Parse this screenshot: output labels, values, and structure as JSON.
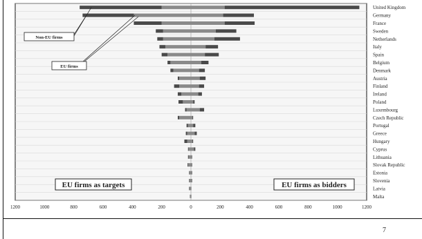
{
  "page": {
    "number": "7"
  },
  "chart_data": {
    "type": "bar",
    "orientation": "horizontal-diverging",
    "categories": [
      "United Kingdom",
      "Germany",
      "France",
      "Sweden",
      "Netherlands",
      "Italy",
      "Spain",
      "Belgium",
      "Denmark",
      "Austria",
      "Finland",
      "Ireland",
      "Poland",
      "Luxembourg",
      "Czech Republic",
      "Portugal",
      "Greece",
      "Hungary",
      "Cyprus",
      "Lithuania",
      "Slovak Republic",
      "Estonia",
      "Slovenia",
      "Latvia",
      "Malta"
    ],
    "targets": {
      "label": "EU firms as targets",
      "series": [
        {
          "name": "EU firms",
          "values": [
            200,
            390,
            200,
            190,
            190,
            175,
            160,
            140,
            120,
            80,
            80,
            65,
            55,
            30,
            80,
            20,
            25,
            25,
            15,
            15,
            18,
            10,
            10,
            10,
            5
          ]
        },
        {
          "name": "Non-EU firms",
          "values": [
            560,
            350,
            190,
            50,
            40,
            40,
            40,
            20,
            20,
            10,
            35,
            25,
            30,
            10,
            10,
            10,
            10,
            20,
            5,
            5,
            5,
            3,
            3,
            3,
            2
          ]
        }
      ]
    },
    "bidders": {
      "label": "EU firms as bidders",
      "series": [
        {
          "name": "EU firms",
          "values": [
            230,
            220,
            230,
            170,
            160,
            100,
            95,
            70,
            55,
            60,
            55,
            50,
            15,
            60,
            10,
            15,
            25,
            10,
            20,
            5,
            5,
            5,
            5,
            2,
            2
          ]
        },
        {
          "name": "Non-EU firms",
          "values": [
            920,
            210,
            205,
            140,
            175,
            85,
            95,
            50,
            40,
            40,
            35,
            25,
            10,
            30,
            5,
            15,
            15,
            5,
            10,
            3,
            3,
            3,
            3,
            1,
            1
          ]
        }
      ]
    },
    "x_ticks": [
      "1200",
      "1000",
      "800",
      "600",
      "400",
      "200",
      "0",
      "200",
      "400",
      "600",
      "800",
      "1000",
      "1200"
    ],
    "xlim": [
      -1200,
      1200
    ],
    "grid": true,
    "colors": {
      "eu": "#8a8a8a",
      "non_eu": "#4a4a4a",
      "grid": "#d8d8d8",
      "frame": "#111111"
    },
    "callouts": [
      {
        "text": "Non-EU firms"
      },
      {
        "text": "EU firms"
      }
    ]
  }
}
